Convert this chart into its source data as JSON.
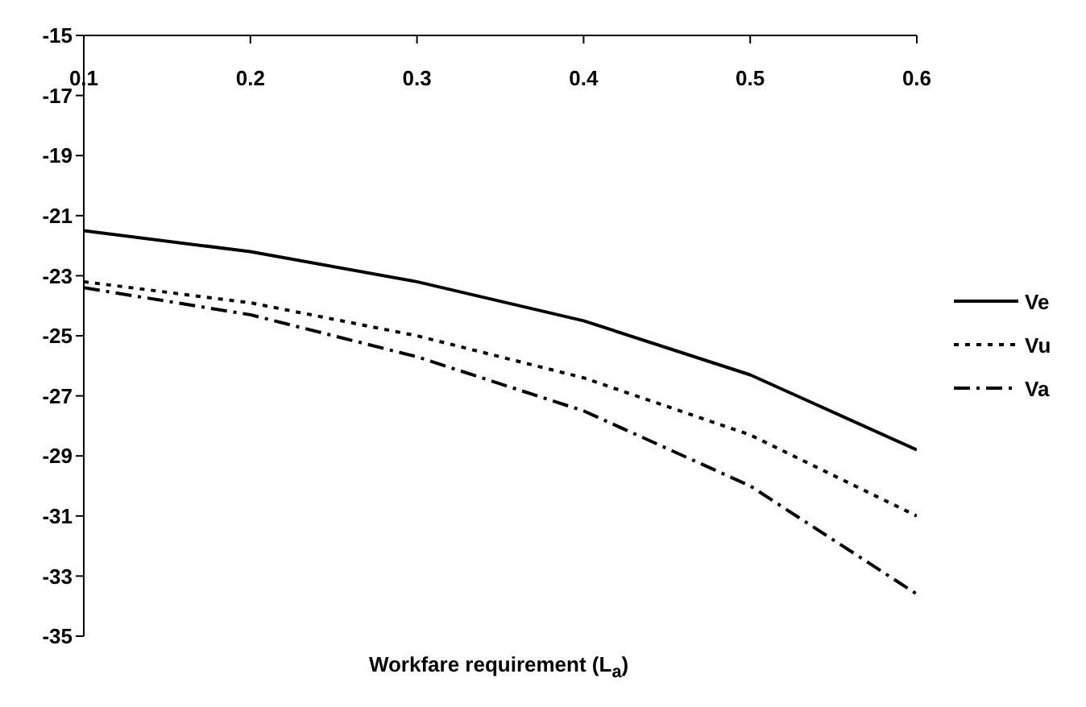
{
  "chart_data": {
    "type": "line",
    "xlabel": "Workfare requirement (L$_{a}$)",
    "x": [
      0.1,
      0.2,
      0.3,
      0.4,
      0.5,
      0.6
    ],
    "xlim": [
      0.1,
      0.6
    ],
    "xticks": [
      0.1,
      0.2,
      0.3,
      0.4,
      0.5,
      0.6
    ],
    "ylim": [
      -35,
      -15
    ],
    "yticks": [
      -35,
      -33,
      -31,
      -29,
      -27,
      -25,
      -23,
      -21,
      -19,
      -17,
      -15
    ],
    "grid": false,
    "legend": "right",
    "marker": "none",
    "series": [
      {
        "name": "Ve",
        "color": "#000000",
        "line_style": "solid",
        "values": [
          -21.5,
          -22.2,
          -23.2,
          -24.5,
          -26.3,
          -28.8
        ]
      },
      {
        "name": "Vu",
        "color": "#000000",
        "line_style": "dotted",
        "values": [
          -23.2,
          -23.9,
          -25.0,
          -26.4,
          -28.3,
          -31.0
        ]
      },
      {
        "name": "Va",
        "color": "#000000",
        "line_style": "dashed",
        "values": [
          -23.4,
          -24.3,
          -25.7,
          -27.5,
          -30.0,
          -33.6
        ]
      }
    ]
  }
}
